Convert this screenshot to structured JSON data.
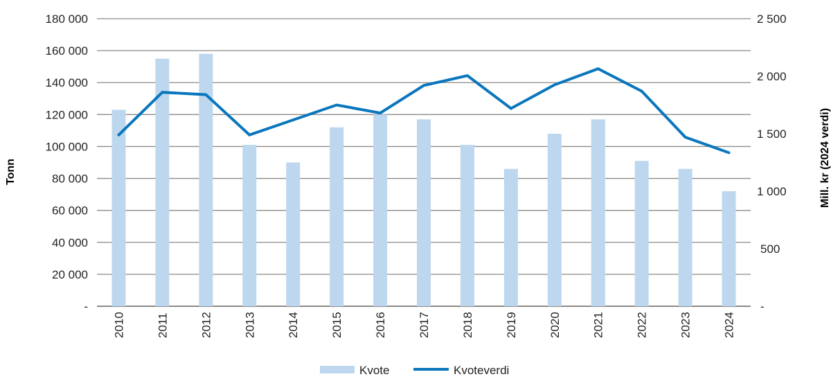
{
  "chart_data": {
    "type": "bar+line",
    "title": "",
    "categories": [
      "2010",
      "2011",
      "2012",
      "2013",
      "2014",
      "2015",
      "2016",
      "2017",
      "2018",
      "2019",
      "2020",
      "2021",
      "2022",
      "2023",
      "2024"
    ],
    "series": [
      {
        "name": "Kvote",
        "type": "bar",
        "axis": "left",
        "color": "#bdd7ee",
        "values": [
          123000,
          155000,
          158000,
          101000,
          90000,
          112000,
          120000,
          117000,
          101000,
          86000,
          108000,
          117000,
          91000,
          86000,
          72000
        ]
      },
      {
        "name": "Kvoteverdi",
        "type": "line",
        "axis": "right",
        "color": "#0a76bd",
        "values": [
          1490,
          1860,
          1840,
          1490,
          1620,
          1750,
          1680,
          1920,
          2005,
          1720,
          1925,
          2065,
          1870,
          1470,
          1335
        ]
      }
    ],
    "ylabel": "Tonn",
    "ylim": [
      0,
      180000
    ],
    "yticks": [
      0,
      20000,
      40000,
      60000,
      80000,
      100000,
      120000,
      140000,
      160000,
      180000
    ],
    "ytick_labels": [
      "-",
      "20 000",
      "40 000",
      "60 000",
      "80 000",
      "100 000",
      "120 000",
      "140 000",
      "160 000",
      "180 000"
    ],
    "y2label": "Mill. kr (2024 verdi)",
    "y2lim": [
      0,
      2500
    ],
    "y2ticks": [
      0,
      500,
      1000,
      1500,
      2000,
      2500
    ],
    "y2tick_labels": [
      "-",
      "500",
      "1 000",
      "1 500",
      "2 000",
      "2 500"
    ],
    "xlabel": "",
    "grid": true,
    "legend_position": "bottom"
  },
  "legend": {
    "items": [
      {
        "label": "Kvote",
        "kind": "bar",
        "color": "#bdd7ee"
      },
      {
        "label": "Kvoteverdi",
        "kind": "line",
        "color": "#0a76bd"
      }
    ]
  },
  "colors": {
    "grid": "#8c8a86",
    "bar": "#bdd7ee",
    "line": "#0a76bd"
  }
}
